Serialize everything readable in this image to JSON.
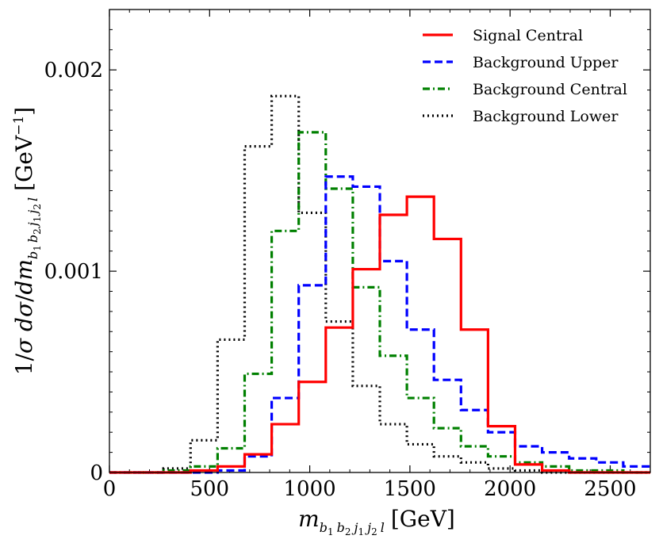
{
  "chart_data": {
    "type": "step-histogram",
    "xlabel": "m_{b1 b2 j1 j2 l} [GeV]",
    "ylabel": "1/σ dσ/dm_{b1 b2 j1 j2 l} [GeV^-1]",
    "xlim": [
      0,
      2700
    ],
    "ylim": [
      0,
      0.0023
    ],
    "x_ticks": [
      0,
      500,
      1000,
      1500,
      2000,
      2500
    ],
    "x_tick_labels": [
      "0",
      "500",
      "1000",
      "1500",
      "2000",
      "2500"
    ],
    "y_ticks": [
      0,
      0.001,
      0.002
    ],
    "y_tick_labels": [
      "0",
      "0.001",
      "0.002"
    ],
    "bin_edges": [
      0,
      135,
      270,
      405,
      540,
      675,
      810,
      945,
      1080,
      1215,
      1350,
      1485,
      1620,
      1755,
      1890,
      2025,
      2160,
      2295,
      2430,
      2565,
      2700
    ],
    "series": [
      {
        "name": "Signal Central",
        "color": "#ff0000",
        "style": "solid",
        "values": [
          0,
          0,
          0,
          1e-05,
          3e-05,
          9e-05,
          0.00024,
          0.00045,
          0.00072,
          0.00101,
          0.00128,
          0.00137,
          0.00116,
          0.00071,
          0.00023,
          4e-05,
          1e-05,
          0,
          0,
          0
        ]
      },
      {
        "name": "Background Upper",
        "color": "#0000ff",
        "style": "dashed",
        "values": [
          0,
          0,
          0,
          0,
          1e-05,
          8e-05,
          0.00037,
          0.00093,
          0.00147,
          0.00142,
          0.00105,
          0.00071,
          0.00046,
          0.00031,
          0.0002,
          0.00013,
          0.0001,
          7e-05,
          5e-05,
          3e-05
        ]
      },
      {
        "name": "Background Central",
        "color": "#008000",
        "style": "dashdot",
        "values": [
          0,
          0,
          1e-05,
          3e-05,
          0.00012,
          0.00049,
          0.0012,
          0.00169,
          0.00141,
          0.00092,
          0.00058,
          0.00037,
          0.00022,
          0.00013,
          8e-05,
          5e-05,
          3e-05,
          1e-05,
          1e-05,
          0
        ]
      },
      {
        "name": "Background Lower",
        "color": "#000000",
        "style": "dotted",
        "values": [
          0,
          0,
          2e-05,
          0.00016,
          0.00066,
          0.00162,
          0.00187,
          0.00129,
          0.00075,
          0.00043,
          0.00024,
          0.00014,
          8e-05,
          5e-05,
          2e-05,
          1e-05,
          0,
          0,
          0,
          0
        ]
      }
    ],
    "legend_location": "top-right"
  }
}
